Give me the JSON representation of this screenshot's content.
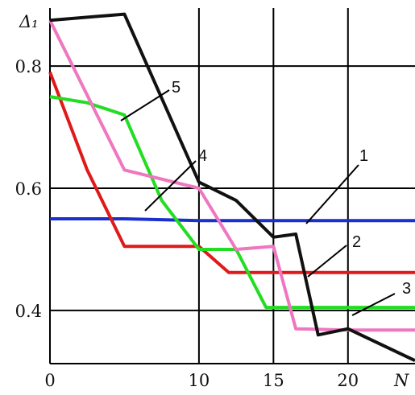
{
  "chart_data": {
    "type": "line",
    "title": "",
    "xlabel": "N",
    "ylabel": "Δ₁",
    "xlim": [
      0,
      24.5
    ],
    "ylim": [
      0.313,
      0.895
    ],
    "xticks": [
      0,
      10,
      15,
      20
    ],
    "yticks": [
      0.4,
      0.6,
      0.8
    ],
    "xtick_labels": [
      "0",
      "10",
      "15",
      "20"
    ],
    "ytick_labels": [
      "0.4",
      "0.6",
      "0.8"
    ],
    "grid": true,
    "series": [
      {
        "name": "1",
        "color": "#1a2fcc",
        "x": [
          0,
          5,
          10,
          15,
          20,
          24.5
        ],
        "y": [
          0.55,
          0.55,
          0.547,
          0.547,
          0.547,
          0.547
        ]
      },
      {
        "name": "2",
        "color": "#e01a1a",
        "x": [
          0,
          2.5,
          5,
          10,
          12,
          20,
          24.5
        ],
        "y": [
          0.79,
          0.63,
          0.505,
          0.505,
          0.462,
          0.462,
          0.462
        ]
      },
      {
        "name": "3",
        "color": "#22dd22",
        "x": [
          0,
          2.5,
          5,
          7.5,
          10,
          12.5,
          14.5,
          20,
          24.5
        ],
        "y": [
          0.75,
          0.74,
          0.72,
          0.58,
          0.5,
          0.5,
          0.405,
          0.405,
          0.405
        ]
      },
      {
        "name": "4",
        "color": "#ee77c0",
        "x": [
          0,
          5,
          10,
          12.5,
          15,
          16.5,
          20,
          24.5
        ],
        "y": [
          0.875,
          0.63,
          0.6,
          0.5,
          0.505,
          0.37,
          0.368,
          0.368
        ]
      },
      {
        "name": "5",
        "color": "#111111",
        "x": [
          0,
          5,
          10,
          12.5,
          15,
          16.5,
          18,
          20,
          24.5
        ],
        "y": [
          0.875,
          0.885,
          0.61,
          0.58,
          0.52,
          0.525,
          0.36,
          0.37,
          0.318
        ]
      }
    ],
    "annotations": [
      {
        "text": "1",
        "series": "1"
      },
      {
        "text": "2",
        "series": "2"
      },
      {
        "text": "3",
        "series": "3"
      },
      {
        "text": "4",
        "series": "4"
      },
      {
        "text": "5",
        "series": "5"
      }
    ]
  }
}
